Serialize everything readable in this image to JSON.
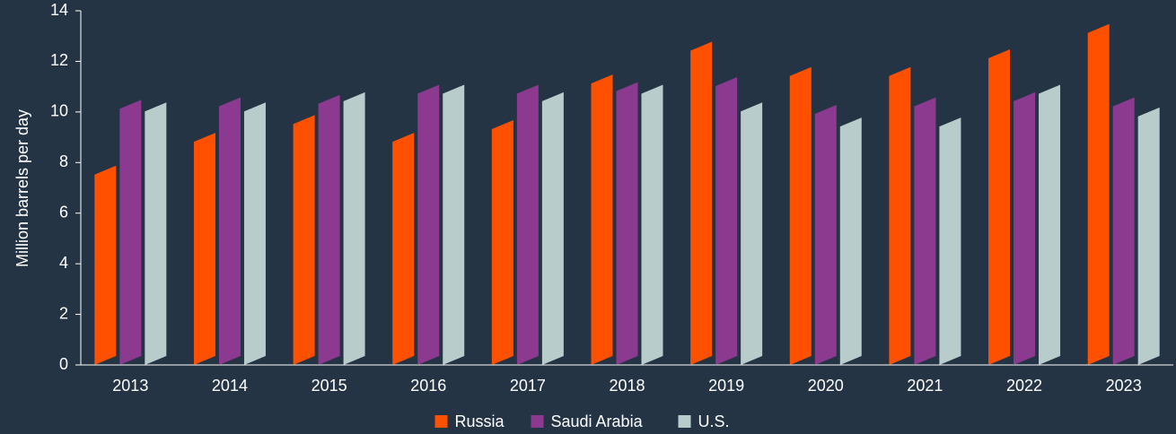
{
  "chart_data": {
    "type": "bar",
    "y_label": "Million barrels per day",
    "categories": [
      "2013",
      "2014",
      "2015",
      "2016",
      "2017",
      "2018",
      "2019",
      "2020",
      "2021",
      "2022",
      "2023"
    ],
    "series": [
      {
        "name": "Russia",
        "color": "#ff5000",
        "values": [
          7.7,
          9.0,
          9.7,
          9.0,
          9.5,
          11.3,
          12.6,
          11.6,
          11.6,
          12.3,
          13.3
        ]
      },
      {
        "name": "Saudi Arabia",
        "color": "#8b3a8f",
        "values": [
          10.3,
          10.4,
          10.5,
          10.9,
          10.9,
          11.0,
          11.2,
          10.1,
          10.4,
          10.6,
          10.4
        ]
      },
      {
        "name": "U.S.",
        "color": "#b8cccc",
        "values": [
          10.2,
          10.2,
          10.6,
          10.9,
          10.6,
          10.9,
          10.2,
          9.6,
          9.6,
          10.9,
          10.0
        ]
      }
    ],
    "ylim": [
      0,
      14
    ],
    "yticks": [
      0,
      2,
      4,
      6,
      8,
      10,
      12,
      14
    ]
  }
}
